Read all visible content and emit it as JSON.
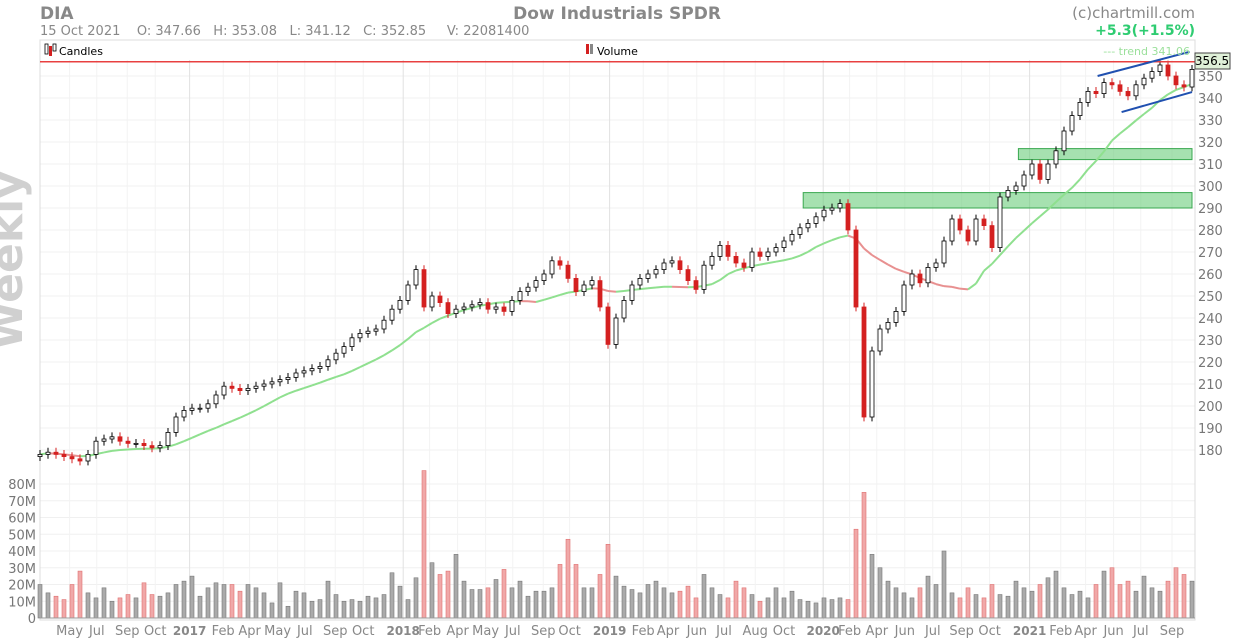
{
  "header": {
    "symbol": "DIA",
    "title": "Dow Industrials SPDR",
    "copyright": "(c)chartmill.com",
    "change": "+5.3(+1.5%)",
    "ohlc_line": "15 Oct 2021    O: 347.66   H: 353.08   L: 341.12   C: 352.85     V: 22081400",
    "legend_candles": "Candles",
    "legend_volume": "Volume",
    "trend_label": "--- trend 341.06",
    "last_price_label": "356.5",
    "watermark": "Weekly"
  },
  "colors": {
    "up": "#ffffff",
    "down": "#d42020",
    "ma_up": "#8fe08f",
    "ma_down": "#e89090",
    "zone": "#5cc870",
    "trend": "#2050b0",
    "resistance": "#e84040",
    "change": "#2ecc71"
  },
  "chart_data": {
    "type": "candlestick",
    "title": "Dow Industrials SPDR",
    "period_weeks_per_bar": 2,
    "price_ticks": [
      180,
      190,
      200,
      210,
      220,
      230,
      240,
      250,
      260,
      270,
      280,
      290,
      300,
      310,
      320,
      330,
      340,
      350
    ],
    "price_range": [
      172,
      362
    ],
    "volume_ticks": [
      {
        "v": 0,
        "label": "0"
      },
      {
        "v": 10,
        "label": "10M"
      },
      {
        "v": 20,
        "label": "20M"
      },
      {
        "v": 30,
        "label": "30M"
      },
      {
        "v": 40,
        "label": "40M"
      },
      {
        "v": 50,
        "label": "50M"
      },
      {
        "v": 60,
        "label": "60M"
      },
      {
        "v": 70,
        "label": "70M"
      },
      {
        "v": 80,
        "label": "80M"
      }
    ],
    "volume_range": [
      0,
      82
    ],
    "x_labels": [
      {
        "label": "May",
        "i": 3.7,
        "year": false
      },
      {
        "label": "Jul",
        "i": 7.1,
        "year": false
      },
      {
        "label": "Sep",
        "i": 10.9,
        "year": false
      },
      {
        "label": "Oct",
        "i": 14.4,
        "year": false
      },
      {
        "label": "2017",
        "i": 18.7,
        "year": true
      },
      {
        "label": "Feb",
        "i": 22.9,
        "year": false
      },
      {
        "label": "Apr",
        "i": 26.2,
        "year": false
      },
      {
        "label": "May",
        "i": 29.7,
        "year": false
      },
      {
        "label": "Jul",
        "i": 33.1,
        "year": false
      },
      {
        "label": "Sep",
        "i": 36.9,
        "year": false
      },
      {
        "label": "Oct",
        "i": 40.4,
        "year": false
      },
      {
        "label": "2018",
        "i": 45.4,
        "year": true
      },
      {
        "label": "Feb",
        "i": 48.7,
        "year": false
      },
      {
        "label": "Apr",
        "i": 52.2,
        "year": false
      },
      {
        "label": "May",
        "i": 55.7,
        "year": false
      },
      {
        "label": "Jul",
        "i": 59.1,
        "year": false
      },
      {
        "label": "Sep",
        "i": 62.9,
        "year": false
      },
      {
        "label": "Oct",
        "i": 66.2,
        "year": false
      },
      {
        "label": "2019",
        "i": 71.2,
        "year": true
      },
      {
        "label": "Feb",
        "i": 75.4,
        "year": false
      },
      {
        "label": "Apr",
        "i": 78.5,
        "year": false
      },
      {
        "label": "Jun",
        "i": 82.1,
        "year": false
      },
      {
        "label": "Jul",
        "i": 85.5,
        "year": false
      },
      {
        "label": "Aug",
        "i": 89.4,
        "year": false
      },
      {
        "label": "Oct",
        "i": 93,
        "year": false
      },
      {
        "label": "2020",
        "i": 97.9,
        "year": true
      },
      {
        "label": "Feb",
        "i": 101.2,
        "year": false
      },
      {
        "label": "Apr",
        "i": 104.6,
        "year": false
      },
      {
        "label": "Jun",
        "i": 108.1,
        "year": false
      },
      {
        "label": "Jul",
        "i": 111.6,
        "year": false
      },
      {
        "label": "Sep",
        "i": 115.2,
        "year": false
      },
      {
        "label": "Oct",
        "i": 118.7,
        "year": false
      },
      {
        "label": "2021",
        "i": 123.7,
        "year": true
      },
      {
        "label": "Feb",
        "i": 127.6,
        "year": false
      },
      {
        "label": "Apr",
        "i": 130.7,
        "year": false
      },
      {
        "label": "Jun",
        "i": 134.2,
        "year": false
      },
      {
        "label": "Jul",
        "i": 137.6,
        "year": false
      },
      {
        "label": "Sep",
        "i": 141.5,
        "year": false
      }
    ],
    "closes": [
      178,
      179,
      178,
      177,
      176,
      175,
      178,
      184,
      185,
      186,
      184,
      183,
      183,
      182,
      181,
      182,
      188,
      195,
      198,
      199,
      199,
      201,
      205,
      209,
      208,
      207,
      208,
      209,
      210,
      211,
      212,
      213,
      215,
      216,
      217,
      218,
      221,
      224,
      227,
      231,
      233,
      234,
      235,
      239,
      244,
      248,
      255,
      262,
      245,
      250,
      247,
      242,
      244,
      245,
      246,
      247,
      244,
      245,
      243,
      248,
      252,
      254,
      257,
      260,
      266,
      264,
      258,
      252,
      255,
      257,
      245,
      228,
      240,
      248,
      255,
      258,
      260,
      262,
      265,
      266,
      262,
      257,
      253,
      264,
      268,
      273,
      268,
      265,
      263,
      270,
      268,
      270,
      272,
      275,
      278,
      281,
      283,
      286,
      289,
      290,
      292,
      280,
      245,
      195,
      225,
      235,
      238,
      243,
      255,
      260,
      256,
      263,
      265,
      275,
      285,
      280,
      275,
      285,
      282,
      272,
      295,
      298,
      300,
      305,
      310,
      303,
      310,
      316,
      325,
      332,
      338,
      343,
      342,
      347,
      346,
      343,
      341,
      346,
      349,
      352,
      355,
      350,
      346,
      345,
      353
    ],
    "volumes_millions": [
      20,
      15,
      13,
      11,
      20,
      28,
      15,
      12,
      18,
      10,
      12,
      14,
      12,
      21,
      14,
      13,
      15,
      20,
      22,
      25,
      13,
      18,
      21,
      20,
      20,
      16,
      20,
      18,
      15,
      9,
      21,
      7,
      16,
      15,
      10,
      11,
      22,
      14,
      10,
      11,
      10,
      13,
      12,
      14,
      27,
      19,
      11,
      24,
      88,
      33,
      26,
      28,
      38,
      22,
      17,
      17,
      18,
      23,
      29,
      18,
      22,
      13,
      16,
      16,
      18,
      32,
      47,
      32,
      18,
      18,
      26,
      44,
      25,
      19,
      17,
      15,
      20,
      22,
      18,
      15,
      16,
      19,
      12,
      26,
      18,
      14,
      12,
      22,
      18,
      14,
      10,
      12,
      18,
      12,
      16,
      11,
      10,
      9,
      12,
      11,
      12,
      11,
      53,
      75,
      38,
      30,
      22,
      18,
      15,
      12,
      18,
      25,
      20,
      40,
      15,
      12,
      18,
      14,
      12,
      20,
      14,
      13,
      22,
      18,
      16,
      20,
      24,
      28,
      18,
      14,
      16,
      12,
      20,
      28,
      30,
      20,
      22,
      16,
      25,
      18,
      16,
      22,
      30,
      26,
      22
    ],
    "moving_average_period_bars": 15,
    "zones": [
      {
        "from_i": 95.4,
        "to_i": 144,
        "low": 290,
        "high": 297
      },
      {
        "from_i": 122.3,
        "to_i": 144,
        "low": 312,
        "high": 317
      }
    ],
    "resistance": 356.5,
    "trend_lines": [
      {
        "i1": 132.2,
        "p1": 350,
        "i2": 143.7,
        "p2": 361
      },
      {
        "i1": 135.2,
        "p1": 333.6,
        "i2": 144,
        "p2": 342.7
      }
    ]
  }
}
